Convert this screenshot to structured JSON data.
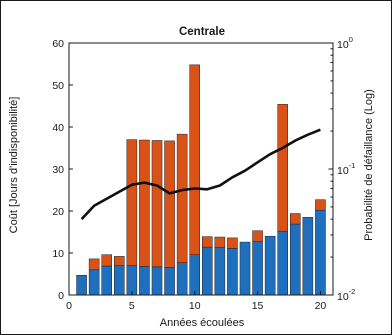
{
  "chart_data": {
    "type": "bar",
    "title": "Centrale",
    "xlabel": "Années écoulées",
    "ylabel": "Coût [Jours d'indisponibilité]",
    "y2label": "Probabilité de défaillance (Log)",
    "xlim": [
      0,
      21
    ],
    "ylim": [
      0,
      60
    ],
    "y2lim": [
      0.01,
      1
    ],
    "y2scale": "log",
    "xticks": [
      0,
      5,
      10,
      15,
      20
    ],
    "yticks": [
      0,
      10,
      20,
      30,
      40,
      50,
      60
    ],
    "y2ticks": [
      {
        "value": 1,
        "label": "10",
        "exp": "0"
      },
      {
        "value": 0.1,
        "label": "10",
        "exp": "-1"
      },
      {
        "value": 0.01,
        "label": "10",
        "exp": "-2"
      }
    ],
    "stacked": true,
    "x": [
      1,
      2,
      3,
      4,
      5,
      6,
      7,
      8,
      9,
      10,
      11,
      12,
      13,
      14,
      15,
      16,
      17,
      18,
      19,
      20
    ],
    "series": [
      {
        "color": "#1f6fbf",
        "values": [
          4.7,
          6.0,
          6.9,
          7.0,
          7.0,
          6.8,
          6.7,
          6.6,
          7.7,
          9.6,
          11.4,
          11.3,
          11.1,
          12.6,
          12.7,
          14.0,
          15.2,
          16.9,
          18.5,
          20.2
        ]
      },
      {
        "color": "#d95319",
        "values": [
          0,
          2.6,
          2.7,
          2.2,
          30.0,
          30.1,
          30.1,
          30.1,
          30.6,
          45.2,
          2.5,
          2.5,
          2.5,
          0,
          2.6,
          0,
          30.2,
          2.5,
          0,
          2.5
        ]
      }
    ],
    "line": {
      "axis": "y2",
      "color": "#111111",
      "values": [
        0.04,
        0.051,
        0.058,
        0.066,
        0.075,
        0.078,
        0.074,
        0.064,
        0.068,
        0.07,
        0.069,
        0.074,
        0.086,
        0.097,
        0.113,
        0.131,
        0.147,
        0.168,
        0.187,
        0.205
      ]
    },
    "grid": false,
    "legend": "none"
  }
}
